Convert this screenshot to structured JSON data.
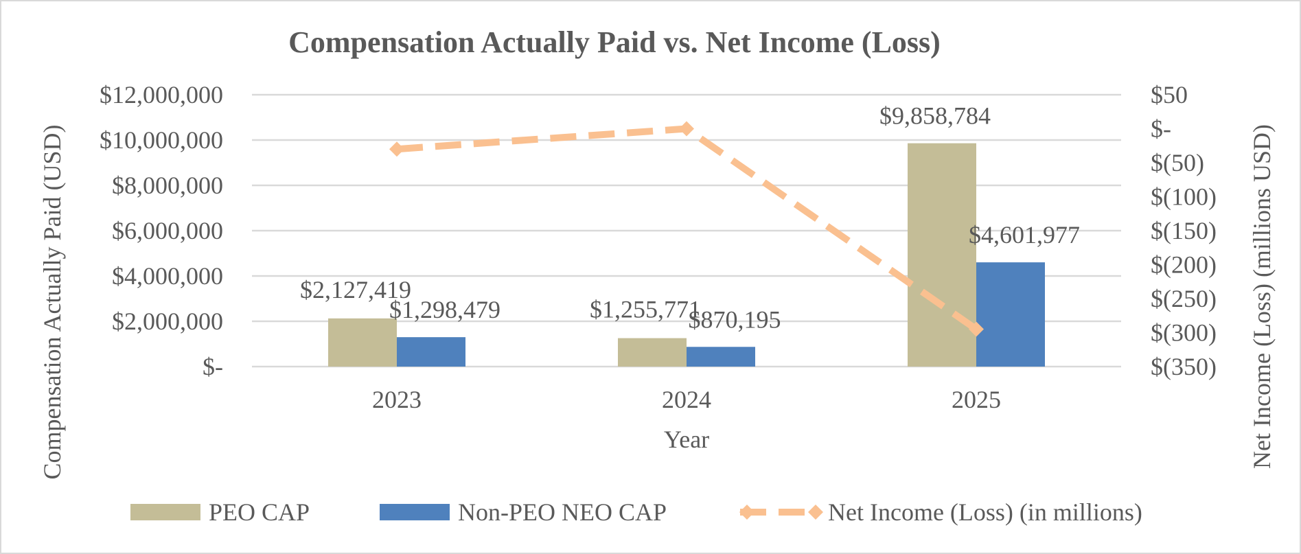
{
  "chart_data": {
    "type": "bar",
    "title": "Compensation Actually Paid vs. Net Income (Loss)",
    "xlabel": "Year",
    "ylabel_left": "Compensation Actually Paid (USD)",
    "ylabel_right": "Net Income (Loss) (millions USD)",
    "categories": [
      "2023",
      "2024",
      "2025"
    ],
    "y_left": {
      "min": 0,
      "max": 12000000,
      "step": 2000000,
      "tick_labels": [
        "$-",
        "$2,000,000",
        "$4,000,000",
        "$6,000,000",
        "$8,000,000",
        "$10,000,000",
        "$12,000,000"
      ]
    },
    "y_right": {
      "min": -350,
      "max": 50,
      "step": 50,
      "tick_labels": [
        "$(350)",
        "$(300)",
        "$(250)",
        "$(200)",
        "$(150)",
        "$(100)",
        "$(50)",
        "$-",
        "$50"
      ]
    },
    "series": [
      {
        "name": "PEO CAP",
        "kind": "bar",
        "axis": "left",
        "color": "#c4bd97",
        "values": [
          2127419,
          1255771,
          9858784
        ],
        "labels": [
          "$2,127,419",
          "$1,255,771",
          "$9,858,784"
        ]
      },
      {
        "name": "Non-PEO NEO CAP",
        "kind": "bar",
        "axis": "left",
        "color": "#4f81bd",
        "values": [
          1298479,
          870195,
          4601977
        ],
        "labels": [
          "$1,298,479",
          "$870,195",
          "$4,601,977"
        ]
      },
      {
        "name": "Net Income (Loss) (in millions)",
        "kind": "line",
        "axis": "right",
        "color": "#fac090",
        "line_style": "dashed",
        "marker": "diamond",
        "values": [
          -30,
          0,
          -295
        ]
      }
    ],
    "grid": true,
    "legend_position": "bottom"
  }
}
